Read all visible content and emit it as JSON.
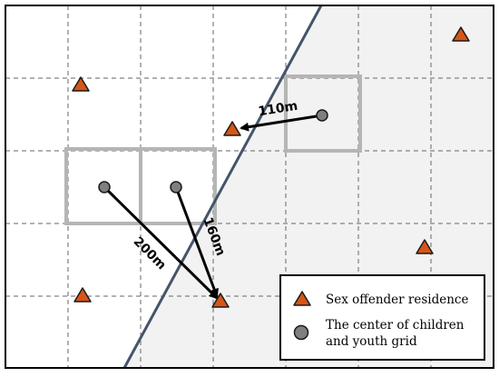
{
  "diagram": {
    "colors": {
      "background": "#ffffff",
      "shaded_region": "#f2f2f2",
      "grid_line": "#666666",
      "highlight_cell": "#b5b5b5",
      "boundary_line": "#44546a",
      "arrow": "#000000",
      "triangle_fill": "#d65617",
      "triangle_stroke": "#1a1a1a",
      "circle_fill": "#7f7f7f",
      "circle_stroke": "#1a1a1a"
    },
    "distances": [
      {
        "label": "110m"
      },
      {
        "label": "200m"
      },
      {
        "label": "160m"
      }
    ],
    "legend": {
      "items": [
        {
          "icon": "triangle-icon",
          "label_lines": [
            "Sex offender residence"
          ]
        },
        {
          "icon": "circle-icon",
          "label_lines": [
            "The center of children",
            "and youth grid"
          ]
        }
      ]
    }
  }
}
